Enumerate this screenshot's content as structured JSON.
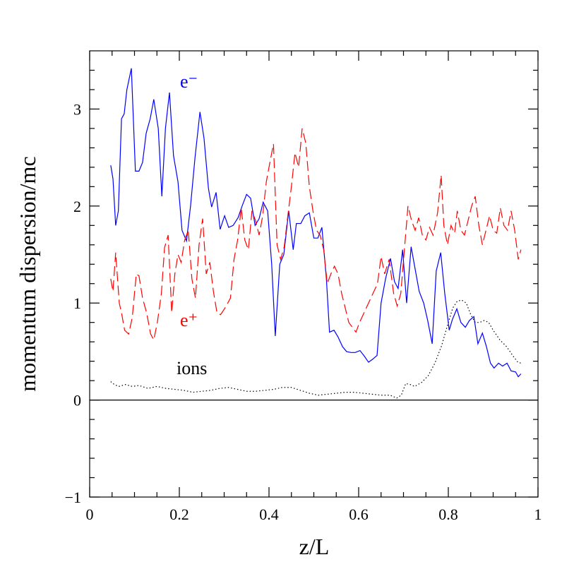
{
  "chart_data": {
    "type": "line",
    "xlabel": "z/L",
    "ylabel": "momentum dispersion/mc",
    "xlim": [
      0,
      1
    ],
    "ylim": [
      -1,
      3.6
    ],
    "xticks": [
      0,
      0.2,
      0.4,
      0.6,
      0.8,
      1
    ],
    "yticks": [
      {
        "value": -1,
        "label": "−1"
      },
      0,
      1,
      2,
      3
    ],
    "xminorticks": [
      0.05,
      0.1,
      0.15,
      0.25,
      0.3,
      0.35,
      0.45,
      0.5,
      0.55,
      0.65,
      0.7,
      0.75,
      0.85,
      0.9,
      0.95
    ],
    "yminorticks": [
      -0.8,
      -0.6,
      -0.4,
      -0.2,
      0.2,
      0.4,
      0.6,
      0.8,
      1.2,
      1.4,
      1.6,
      1.8,
      2.2,
      2.4,
      2.6,
      2.8,
      3.2,
      3.4
    ],
    "zero_line": true,
    "series": [
      {
        "name": "e⁻",
        "color": "#0000ff",
        "style": "solid",
        "x": [
          0.047,
          0.052,
          0.058,
          0.064,
          0.071,
          0.077,
          0.083,
          0.093,
          0.102,
          0.11,
          0.118,
          0.126,
          0.135,
          0.143,
          0.153,
          0.161,
          0.169,
          0.178,
          0.187,
          0.197,
          0.206,
          0.216,
          0.225,
          0.235,
          0.246,
          0.255,
          0.265,
          0.272,
          0.282,
          0.291,
          0.301,
          0.31,
          0.32,
          0.331,
          0.34,
          0.35,
          0.359,
          0.369,
          0.378,
          0.387,
          0.397,
          0.406,
          0.414,
          0.424,
          0.433,
          0.444,
          0.454,
          0.461,
          0.471,
          0.48,
          0.49,
          0.5,
          0.509,
          0.518,
          0.528,
          0.535,
          0.545,
          0.554,
          0.564,
          0.573,
          0.583,
          0.592,
          0.603,
          0.613,
          0.622,
          0.631,
          0.641,
          0.65,
          0.66,
          0.671,
          0.68,
          0.688,
          0.698,
          0.707,
          0.717,
          0.726,
          0.735,
          0.745,
          0.754,
          0.764,
          0.773,
          0.783,
          0.792,
          0.802,
          0.809,
          0.819,
          0.828,
          0.838,
          0.847,
          0.857,
          0.866,
          0.876,
          0.885,
          0.894,
          0.902,
          0.912,
          0.921,
          0.931,
          0.94,
          0.95,
          0.956,
          0.962
        ],
        "values": [
          2.42,
          2.28,
          1.8,
          1.95,
          2.9,
          2.95,
          3.2,
          3.42,
          2.36,
          2.36,
          2.45,
          2.75,
          2.9,
          3.1,
          2.8,
          2.1,
          2.8,
          3.17,
          2.52,
          2.25,
          1.75,
          1.64,
          2.0,
          2.5,
          2.97,
          2.7,
          2.18,
          1.99,
          2.14,
          1.76,
          1.9,
          1.78,
          1.8,
          1.88,
          2.0,
          2.12,
          2.08,
          1.8,
          1.87,
          2.04,
          1.95,
          1.4,
          0.66,
          1.4,
          1.5,
          1.95,
          1.55,
          1.82,
          1.82,
          1.9,
          1.93,
          1.67,
          1.67,
          1.78,
          1.25,
          0.7,
          0.72,
          0.65,
          0.55,
          0.5,
          0.49,
          0.49,
          0.51,
          0.45,
          0.39,
          0.42,
          0.46,
          1.0,
          1.25,
          1.46,
          1.22,
          1.15,
          1.55,
          1.0,
          1.58,
          1.35,
          1.12,
          1.0,
          0.82,
          0.58,
          1.33,
          1.52,
          1.1,
          0.72,
          0.83,
          0.94,
          0.8,
          0.75,
          0.82,
          0.86,
          0.58,
          0.69,
          0.55,
          0.38,
          0.33,
          0.38,
          0.35,
          0.38,
          0.3,
          0.29,
          0.24,
          0.27
        ]
      },
      {
        "name": "e⁺",
        "color": "#ff0000",
        "style": "dashed",
        "x": [
          0.047,
          0.052,
          0.058,
          0.066,
          0.071,
          0.078,
          0.087,
          0.095,
          0.104,
          0.11,
          0.118,
          0.127,
          0.136,
          0.143,
          0.151,
          0.16,
          0.167,
          0.175,
          0.183,
          0.19,
          0.197,
          0.204,
          0.212,
          0.22,
          0.228,
          0.236,
          0.244,
          0.252,
          0.26,
          0.268,
          0.276,
          0.284,
          0.292,
          0.302,
          0.314,
          0.322,
          0.33,
          0.338,
          0.346,
          0.354,
          0.362,
          0.37,
          0.378,
          0.386,
          0.394,
          0.402,
          0.41,
          0.418,
          0.426,
          0.434,
          0.442,
          0.45,
          0.458,
          0.466,
          0.474,
          0.482,
          0.49,
          0.498,
          0.506,
          0.514,
          0.522,
          0.53,
          0.538,
          0.546,
          0.554,
          0.562,
          0.57,
          0.578,
          0.586,
          0.594,
          0.602,
          0.612,
          0.622,
          0.632,
          0.642,
          0.65,
          0.658,
          0.668,
          0.678,
          0.686,
          0.694,
          0.702,
          0.71,
          0.718,
          0.726,
          0.734,
          0.742,
          0.75,
          0.758,
          0.766,
          0.776,
          0.784,
          0.79,
          0.798,
          0.806,
          0.814,
          0.82,
          0.828,
          0.836,
          0.844,
          0.852,
          0.86,
          0.868,
          0.876,
          0.884,
          0.892,
          0.9,
          0.908,
          0.916,
          0.924,
          0.932,
          0.94,
          0.948,
          0.956,
          0.962
        ],
        "values": [
          1.25,
          1.12,
          1.52,
          1.0,
          0.9,
          0.72,
          0.68,
          0.85,
          1.3,
          1.28,
          1.05,
          0.9,
          0.68,
          0.62,
          0.8,
          1.1,
          1.57,
          1.7,
          0.9,
          1.3,
          1.5,
          1.42,
          1.65,
          1.75,
          1.25,
          1.05,
          1.6,
          1.87,
          1.3,
          1.42,
          1.12,
          0.9,
          0.88,
          0.95,
          1.05,
          1.45,
          1.65,
          1.98,
          1.65,
          1.55,
          1.95,
          1.85,
          1.7,
          1.9,
          2.25,
          2.45,
          2.64,
          1.6,
          1.45,
          1.58,
          1.9,
          2.2,
          2.55,
          2.4,
          2.8,
          2.65,
          2.2,
          1.95,
          1.75,
          1.7,
          1.55,
          1.2,
          1.3,
          1.38,
          1.3,
          1.1,
          0.95,
          0.8,
          0.75,
          0.7,
          0.8,
          0.9,
          1.0,
          1.1,
          1.2,
          1.48,
          1.3,
          1.45,
          1.1,
          0.97,
          1.1,
          1.55,
          2.0,
          1.85,
          1.75,
          1.88,
          1.7,
          1.65,
          1.78,
          1.7,
          1.93,
          2.32,
          1.8,
          1.6,
          1.8,
          1.72,
          1.95,
          1.75,
          1.7,
          1.85,
          2.0,
          2.1,
          1.8,
          1.6,
          1.75,
          1.9,
          1.75,
          1.72,
          1.98,
          1.8,
          1.75,
          1.95,
          1.75,
          1.45,
          1.55
        ]
      },
      {
        "name": "ions",
        "color": "#000000",
        "style": "dotted",
        "x": [
          0.047,
          0.055,
          0.065,
          0.08,
          0.095,
          0.11,
          0.13,
          0.15,
          0.17,
          0.19,
          0.21,
          0.23,
          0.25,
          0.27,
          0.29,
          0.31,
          0.33,
          0.35,
          0.37,
          0.39,
          0.41,
          0.43,
          0.45,
          0.47,
          0.49,
          0.51,
          0.53,
          0.55,
          0.57,
          0.59,
          0.61,
          0.63,
          0.65,
          0.67,
          0.685,
          0.695,
          0.705,
          0.715,
          0.725,
          0.74,
          0.755,
          0.77,
          0.785,
          0.8,
          0.81,
          0.82,
          0.83,
          0.84,
          0.85,
          0.86,
          0.87,
          0.88,
          0.89,
          0.9,
          0.915,
          0.93,
          0.945,
          0.955,
          0.962
        ],
        "values": [
          0.19,
          0.16,
          0.14,
          0.16,
          0.14,
          0.15,
          0.12,
          0.14,
          0.12,
          0.11,
          0.1,
          0.08,
          0.09,
          0.1,
          0.12,
          0.13,
          0.11,
          0.09,
          0.09,
          0.1,
          0.11,
          0.13,
          0.13,
          0.1,
          0.07,
          0.05,
          0.06,
          0.07,
          0.08,
          0.08,
          0.07,
          0.06,
          0.05,
          0.05,
          0.02,
          0.05,
          0.17,
          0.16,
          0.14,
          0.18,
          0.25,
          0.38,
          0.56,
          0.8,
          0.95,
          1.02,
          1.03,
          1.0,
          0.88,
          0.8,
          0.8,
          0.82,
          0.8,
          0.72,
          0.62,
          0.55,
          0.45,
          0.39,
          0.38
        ]
      }
    ]
  }
}
